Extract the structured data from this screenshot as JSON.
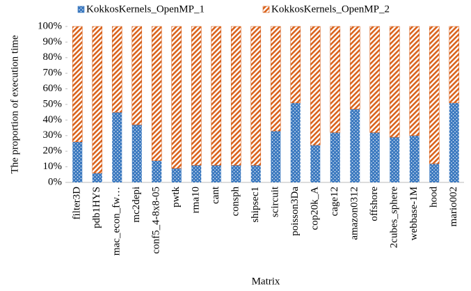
{
  "chart_data": {
    "type": "stacked_bar",
    "xlabel": "Matrix",
    "ylabel": "The proportion of execution time",
    "categories": [
      "filter3D",
      "pdb1HYS",
      "mac_econ_fw…",
      "mc2depi",
      "conf5_4-8x8-05",
      "pwtk",
      "rma10",
      "cant",
      "consph",
      "shipsec1",
      "scircuit",
      "poisson3Da",
      "cop20k_A",
      "cage12",
      "amazon0312",
      "offshore",
      "2cubes_sphere",
      "webbase-1M",
      "hood",
      "mario002"
    ],
    "series": [
      {
        "name": "KokkosKernels_OpenMP_1",
        "color": "#3a78bf",
        "values": [
          26,
          6,
          45,
          37,
          14,
          9,
          11,
          11,
          11,
          11,
          33,
          51,
          24,
          32,
          47,
          32,
          29,
          30,
          12,
          51
        ]
      },
      {
        "name": "KokkosKernels_OpenMP_2",
        "color": "#d9621c",
        "values": [
          74,
          94,
          55,
          63,
          86,
          91,
          89,
          89,
          89,
          89,
          67,
          49,
          76,
          68,
          53,
          68,
          71,
          70,
          88,
          49
        ]
      }
    ],
    "ylim": [
      0,
      100
    ],
    "yticks": [
      {
        "value": 0,
        "label": "0%"
      },
      {
        "value": 10,
        "label": "10%"
      },
      {
        "value": 20,
        "label": "20%"
      },
      {
        "value": 30,
        "label": "30%"
      },
      {
        "value": 40,
        "label": "40%"
      },
      {
        "value": 50,
        "label": "50%"
      },
      {
        "value": 60,
        "label": "60%"
      },
      {
        "value": 70,
        "label": "70%"
      },
      {
        "value": 80,
        "label": "80%"
      },
      {
        "value": 90,
        "label": "90%"
      },
      {
        "value": 100,
        "label": "100%"
      }
    ],
    "legend": "top"
  }
}
